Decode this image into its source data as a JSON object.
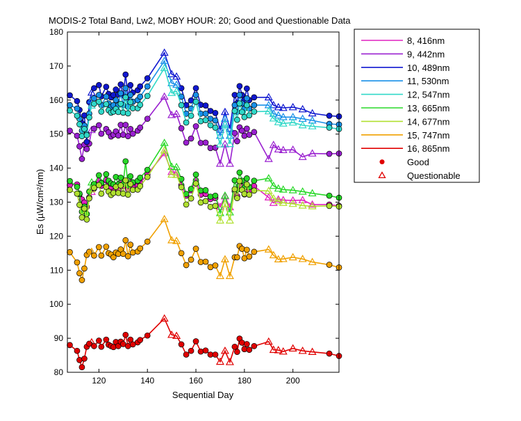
{
  "chart_data": {
    "type": "line",
    "title": "MODIS-2 Total Band,  Lw2, MOBY HOUR: 20;  Good and Questionable Data",
    "xlabel": "Sequential Day",
    "ylabel": "Es (µW/cm²/nm)",
    "xlim": [
      107,
      219
    ],
    "ylim": [
      80,
      180
    ],
    "xticks": [
      120,
      140,
      160,
      180,
      200
    ],
    "yticks": [
      80,
      90,
      100,
      110,
      120,
      130,
      140,
      150,
      160,
      170,
      180
    ],
    "grid": false,
    "legend_position": "outside-right",
    "legend_markers": [
      {
        "label": "Good",
        "marker": "circle",
        "color": "#e00000"
      },
      {
        "label": "Questionable",
        "marker": "triangle",
        "color": "#e00000"
      }
    ],
    "x": [
      108,
      111,
      112,
      113,
      114,
      115,
      116,
      117,
      118,
      120,
      121,
      123,
      124,
      125,
      126,
      127,
      128,
      129,
      130,
      131,
      132,
      133,
      134,
      136,
      137,
      140,
      147,
      150,
      152,
      154,
      156,
      158,
      160,
      162,
      164,
      166,
      168,
      170,
      172,
      174,
      176,
      177,
      178,
      179,
      180,
      181,
      182,
      184,
      190,
      192,
      194,
      196,
      200,
      204,
      208,
      215,
      219
    ],
    "quality": [
      "G",
      "G",
      "G",
      "G",
      "G",
      "G",
      "G",
      "Q",
      "G",
      "G",
      "G",
      "G",
      "G",
      "G",
      "G",
      "G",
      "G",
      "G",
      "G",
      "G",
      "G",
      "G",
      "G",
      "G",
      "G",
      "G",
      "Q",
      "Q",
      "Q",
      "G",
      "G",
      "G",
      "G",
      "G",
      "G",
      "G",
      "G",
      "Q",
      "Q",
      "Q",
      "G",
      "G",
      "G",
      "G",
      "G",
      "G",
      "G",
      "G",
      "Q",
      "Q",
      "Q",
      "Q",
      "Q",
      "Q",
      "Q",
      "G",
      "G"
    ],
    "series": [
      {
        "name": "8, 416nm",
        "color": "#e020c0",
        "values": [
          135.0,
          135.2,
          132.3,
          130.8,
          129.9,
          128.6,
          131.4,
          133.0,
          134.0,
          136.3,
          134.8,
          136.5,
          135.6,
          134.4,
          133.1,
          134.8,
          133.6,
          135.8,
          134.7,
          136.0,
          133.8,
          135.9,
          134.4,
          134.9,
          135.6,
          138.1,
          144.4,
          138.9,
          138.7,
          135.0,
          131.9,
          133.5,
          136.4,
          132.2,
          132.4,
          130.9,
          131.2,
          128.6,
          131.7,
          128.5,
          133.2,
          131.8,
          135.0,
          134.5,
          132.3,
          135.0,
          133.3,
          134.7,
          131.4,
          129.8,
          130.8,
          130.6,
          130.5,
          130.6,
          129.3,
          129.3,
          128.9
        ]
      },
      {
        "name": "9, 442nm",
        "color": "#9a20d0",
        "values": [
          151.0,
          149.5,
          146.4,
          142.7,
          146.9,
          145.6,
          147.2,
          151.2,
          151.6,
          152.6,
          150.1,
          151.5,
          150.5,
          149.3,
          149.8,
          150.8,
          149.6,
          152.7,
          149.8,
          152.7,
          149.4,
          151.5,
          150.1,
          151.0,
          151.9,
          154.5,
          161.0,
          155.6,
          155.9,
          151.7,
          147.5,
          148.7,
          152.3,
          147.4,
          147.5,
          145.9,
          146.0,
          141.3,
          147.0,
          141.3,
          150.3,
          147.9,
          152.0,
          151.0,
          149.5,
          151.6,
          149.8,
          150.6,
          142.7,
          146.8,
          145.5,
          145.3,
          145.4,
          143.3,
          144.3,
          144.2,
          144.3
        ]
      },
      {
        "name": "10, 489nm",
        "color": "#1018d0",
        "values": [
          161.4,
          159.7,
          157.1,
          153.2,
          155.5,
          147.7,
          159.4,
          162.2,
          163.5,
          164.4,
          161.1,
          163.9,
          161.8,
          160.8,
          161.5,
          163.1,
          161.6,
          164.6,
          161.4,
          167.5,
          160.9,
          164.4,
          162.2,
          162.9,
          164.0,
          166.4,
          173.9,
          167.6,
          166.9,
          163.5,
          158.5,
          159.9,
          163.5,
          158.6,
          158.4,
          156.8,
          156.2,
          151.3,
          156.5,
          151.6,
          161.5,
          159.1,
          164.1,
          161.5,
          160.1,
          163.4,
          160.0,
          160.8,
          160.8,
          158.5,
          157.9,
          157.7,
          157.9,
          157.3,
          156.1,
          155.4,
          155.2
        ]
      },
      {
        "name": "11, 530nm",
        "color": "#1890e8",
        "values": [
          158.5,
          157.5,
          154.5,
          151.0,
          152.5,
          150.0,
          156.0,
          160.0,
          160.5,
          161.5,
          158.5,
          161.0,
          159.0,
          158.0,
          158.5,
          160.0,
          158.5,
          162.0,
          158.5,
          163.5,
          158.0,
          161.5,
          159.5,
          160.0,
          161.0,
          164.0,
          171.5,
          165.0,
          164.5,
          161.0,
          156.0,
          157.5,
          161.5,
          156.0,
          156.0,
          154.5,
          154.0,
          149.5,
          154.5,
          149.5,
          158.5,
          156.5,
          161.5,
          159.0,
          157.5,
          160.5,
          157.5,
          158.5,
          158.5,
          156.0,
          155.5,
          155.0,
          155.0,
          154.5,
          154.0,
          153.0,
          152.8
        ]
      },
      {
        "name": "12, 547nm",
        "color": "#30d8c8",
        "values": [
          156.9,
          155.4,
          152.9,
          149.4,
          151.5,
          149.7,
          154.9,
          158.4,
          158.9,
          159.5,
          156.6,
          158.8,
          157.0,
          156.3,
          156.6,
          157.4,
          156.5,
          158.9,
          156.3,
          160.8,
          156.1,
          159.4,
          157.6,
          157.6,
          158.6,
          161.2,
          169.4,
          162.1,
          162.6,
          158.5,
          153.4,
          155.4,
          159.5,
          153.8,
          154.1,
          152.6,
          151.9,
          147.0,
          152.8,
          147.1,
          156.8,
          154.2,
          159.0,
          156.5,
          155.0,
          158.5,
          155.5,
          156.6,
          156.7,
          154.6,
          153.5,
          153.1,
          153.4,
          152.6,
          152.3,
          151.9,
          151.5
        ]
      },
      {
        "name": "13, 665nm",
        "color": "#28d828",
        "values": [
          136.2,
          134.5,
          132.5,
          127.2,
          128.7,
          126.5,
          133.1,
          135.8,
          135.3,
          137.9,
          135.6,
          138.2,
          136.3,
          135.5,
          135.2,
          137.4,
          135.2,
          137.2,
          135.3,
          142.0,
          134.9,
          137.6,
          135.8,
          136.3,
          137.2,
          139.5,
          147.4,
          140.4,
          140.3,
          136.8,
          132.4,
          133.9,
          138.1,
          133.4,
          133.5,
          131.6,
          131.9,
          126.8,
          131.9,
          127.0,
          136.4,
          133.6,
          138.7,
          136.3,
          134.3,
          137.0,
          134.4,
          136.3,
          137.0,
          134.8,
          134.0,
          133.7,
          133.5,
          133.1,
          132.6,
          131.9,
          131.3
        ]
      },
      {
        "name": "14, 677nm",
        "color": "#b0e030",
        "values": [
          133.6,
          132.5,
          129.2,
          125.5,
          128.1,
          124.9,
          131.1,
          133.8,
          134.2,
          135.0,
          132.5,
          134.5,
          133.1,
          132.1,
          132.7,
          134.5,
          132.7,
          134.9,
          132.5,
          136.4,
          132.2,
          135.3,
          133.6,
          133.7,
          134.7,
          137.4,
          145.2,
          138.1,
          138.0,
          134.4,
          129.3,
          131.1,
          135.5,
          129.9,
          130.3,
          128.6,
          128.9,
          124.6,
          129.5,
          124.6,
          133.8,
          131.2,
          136.2,
          133.6,
          132.4,
          135.2,
          132.2,
          133.4,
          133.3,
          131.1,
          130.3,
          129.8,
          129.5,
          129.0,
          128.8,
          128.9,
          128.7
        ]
      },
      {
        "name": "15, 747nm",
        "color": "#f0a000",
        "values": [
          115.3,
          112.3,
          109.1,
          107.1,
          110.5,
          114.5,
          115.4,
          115.4,
          114.3,
          116.8,
          114.3,
          116.9,
          115.0,
          114.6,
          113.8,
          115.2,
          114.8,
          116.1,
          114.8,
          118.8,
          114.1,
          117.5,
          115.2,
          115.5,
          116.4,
          118.4,
          125.0,
          118.8,
          118.6,
          115.0,
          111.5,
          113.1,
          116.3,
          112.4,
          112.5,
          110.9,
          111.4,
          108.3,
          113.2,
          108.3,
          113.8,
          113.8,
          117.1,
          116.3,
          113.5,
          116.0,
          114.0,
          115.4,
          116.1,
          114.4,
          113.2,
          113.3,
          113.8,
          113.3,
          112.4,
          111.6,
          110.8
        ]
      },
      {
        "name": "16, 865nm",
        "color": "#e00000",
        "values": [
          88.0,
          86.3,
          83.6,
          81.5,
          84.0,
          87.5,
          88.4,
          88.8,
          87.7,
          89.3,
          87.5,
          89.6,
          88.1,
          87.7,
          87.4,
          88.9,
          87.7,
          89.0,
          88.3,
          91.0,
          87.7,
          89.6,
          88.2,
          88.8,
          89.5,
          90.8,
          95.8,
          91.0,
          90.7,
          88.2,
          85.2,
          86.3,
          89.1,
          86.1,
          86.4,
          85.2,
          85.2,
          83.1,
          86.3,
          83.0,
          87.5,
          86.0,
          89.9,
          88.7,
          86.8,
          88.3,
          86.6,
          87.7,
          89.0,
          86.6,
          86.5,
          86.1,
          87.0,
          86.3,
          86.0,
          85.5,
          84.8
        ]
      }
    ]
  }
}
